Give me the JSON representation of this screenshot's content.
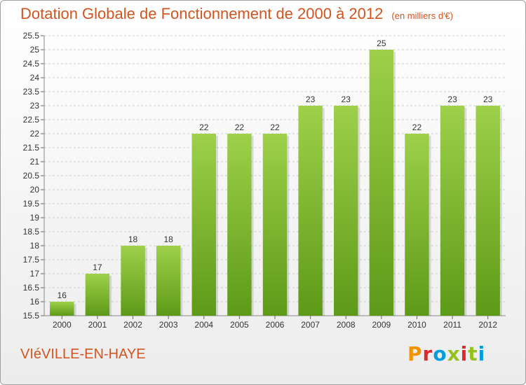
{
  "title": "Dotation Globale de Fonctionnement de 2000 à 2012",
  "subtitle": "(en milliers d'€)",
  "commune": "VIéVILLE-EN-HAYE",
  "logo_letters": [
    "P",
    "r",
    "o",
    "x",
    "i",
    "t",
    "i"
  ],
  "logo_colors": [
    "#f29400",
    "#e3262d",
    "#009ee0",
    "#95c11f",
    "#e3262d",
    "#95c11f",
    "#009ee0"
  ],
  "colors": {
    "bar_light": "#9ed04a",
    "bar_dark": "#5d9a18",
    "title": "#d4541f",
    "grid": "#cccccc"
  },
  "chart_data": {
    "type": "bar",
    "categories": [
      "2000",
      "2001",
      "2002",
      "2003",
      "2004",
      "2005",
      "2006",
      "2007",
      "2008",
      "2009",
      "2010",
      "2011",
      "2012"
    ],
    "values": [
      16,
      17,
      18,
      18,
      22,
      22,
      22,
      23,
      23,
      25,
      22,
      23,
      23
    ],
    "value_labels": [
      "16",
      "17",
      "18",
      "18",
      "22",
      "22",
      "22",
      "23",
      "23",
      "25",
      "22",
      "23",
      "23"
    ],
    "ylim": [
      15.5,
      25.5
    ],
    "yticks": [
      15.5,
      16,
      16.5,
      17,
      17.5,
      18,
      18.5,
      19,
      19.5,
      20,
      20.5,
      21,
      21.5,
      22,
      22.5,
      23,
      23.5,
      24,
      24.5,
      25,
      25.5
    ],
    "ytick_labels": [
      "15.5",
      "16",
      "16.5",
      "17",
      "17.5",
      "18",
      "18.5",
      "19",
      "19.5",
      "20",
      "20.5",
      "21",
      "21.5",
      "22",
      "22.5",
      "23",
      "23.5",
      "24",
      "24.5",
      "25",
      "25.5"
    ],
    "grid": "horizontal dashed",
    "xlabel": "",
    "ylabel": ""
  }
}
